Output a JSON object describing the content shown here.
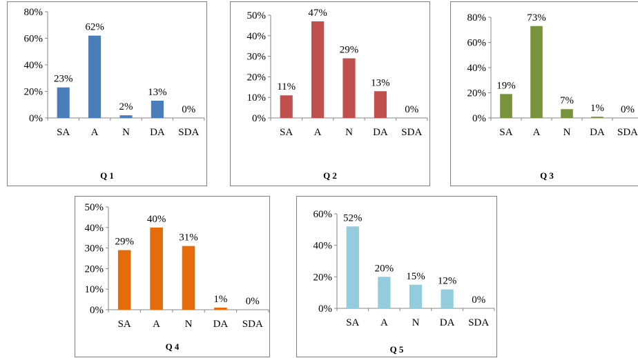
{
  "charts": [
    {
      "type": "bar",
      "title": "Q 1",
      "color": "#4a7ebb",
      "categories": [
        "SA",
        "A",
        "N",
        "DA",
        "SDA"
      ],
      "values": [
        23,
        62,
        2,
        13,
        0
      ],
      "labels": [
        "23%",
        "62%",
        "2%",
        "13%",
        "0%"
      ],
      "ylim": [
        0,
        80
      ],
      "yticks": [
        0,
        20,
        40,
        60,
        80
      ],
      "ytick_labels": [
        "0%",
        "20%",
        "40%",
        "60%",
        "80%"
      ]
    },
    {
      "type": "bar",
      "title": "Q 2",
      "color": "#c0504d",
      "categories": [
        "SA",
        "A",
        "N",
        "DA",
        "SDA"
      ],
      "values": [
        11,
        47,
        29,
        13,
        0
      ],
      "labels": [
        "11%",
        "47%",
        "29%",
        "13%",
        "0%"
      ],
      "ylim": [
        0,
        50
      ],
      "yticks": [
        0,
        10,
        20,
        30,
        40,
        50
      ],
      "ytick_labels": [
        "0%",
        "10%",
        "20%",
        "30%",
        "40%",
        "50%"
      ]
    },
    {
      "type": "bar",
      "title": "Q 3",
      "color": "#77933c",
      "categories": [
        "SA",
        "A",
        "N",
        "DA",
        "SDA"
      ],
      "values": [
        19,
        73,
        7,
        1,
        0
      ],
      "labels": [
        "19%",
        "73%",
        "7%",
        "1%",
        "0%"
      ],
      "ylim": [
        0,
        80
      ],
      "yticks": [
        0,
        20,
        40,
        60,
        80
      ],
      "ytick_labels": [
        "0%",
        "20%",
        "40%",
        "60%",
        "80%"
      ]
    },
    {
      "type": "bar",
      "title": "Q 4",
      "color": "#e46c0a",
      "categories": [
        "SA",
        "A",
        "N",
        "DA",
        "SDA"
      ],
      "values": [
        29,
        40,
        31,
        1,
        0
      ],
      "labels": [
        "29%",
        "40%",
        "31%",
        "1%",
        "0%"
      ],
      "ylim": [
        0,
        50
      ],
      "yticks": [
        0,
        10,
        20,
        30,
        40,
        50
      ],
      "ytick_labels": [
        "0%",
        "10%",
        "20%",
        "30%",
        "40%",
        "50%"
      ]
    },
    {
      "type": "bar",
      "title": "Q 5",
      "color": "#93cddd",
      "categories": [
        "SA",
        "A",
        "N",
        "DA",
        "SDA"
      ],
      "values": [
        52,
        20,
        15,
        12,
        0
      ],
      "labels": [
        "52%",
        "20%",
        "15%",
        "12%",
        "0%"
      ],
      "ylim": [
        0,
        60
      ],
      "yticks": [
        0,
        20,
        40,
        60
      ],
      "ytick_labels": [
        "0%",
        "20%",
        "40%",
        "60%"
      ]
    }
  ],
  "chart_data": [
    {
      "type": "bar",
      "title": "Q 1",
      "categories": [
        "SA",
        "A",
        "N",
        "DA",
        "SDA"
      ],
      "values": [
        23,
        62,
        2,
        13,
        0
      ],
      "ylim": [
        0,
        80
      ]
    },
    {
      "type": "bar",
      "title": "Q 2",
      "categories": [
        "SA",
        "A",
        "N",
        "DA",
        "SDA"
      ],
      "values": [
        11,
        47,
        29,
        13,
        0
      ],
      "ylim": [
        0,
        50
      ]
    },
    {
      "type": "bar",
      "title": "Q 3",
      "categories": [
        "SA",
        "A",
        "N",
        "DA",
        "SDA"
      ],
      "values": [
        19,
        73,
        7,
        1,
        0
      ],
      "ylim": [
        0,
        80
      ]
    },
    {
      "type": "bar",
      "title": "Q 4",
      "categories": [
        "SA",
        "A",
        "N",
        "DA",
        "SDA"
      ],
      "values": [
        29,
        40,
        31,
        1,
        0
      ],
      "ylim": [
        0,
        50
      ]
    },
    {
      "type": "bar",
      "title": "Q 5",
      "categories": [
        "SA",
        "A",
        "N",
        "DA",
        "SDA"
      ],
      "values": [
        52,
        20,
        15,
        12,
        0
      ],
      "ylim": [
        0,
        60
      ]
    }
  ]
}
